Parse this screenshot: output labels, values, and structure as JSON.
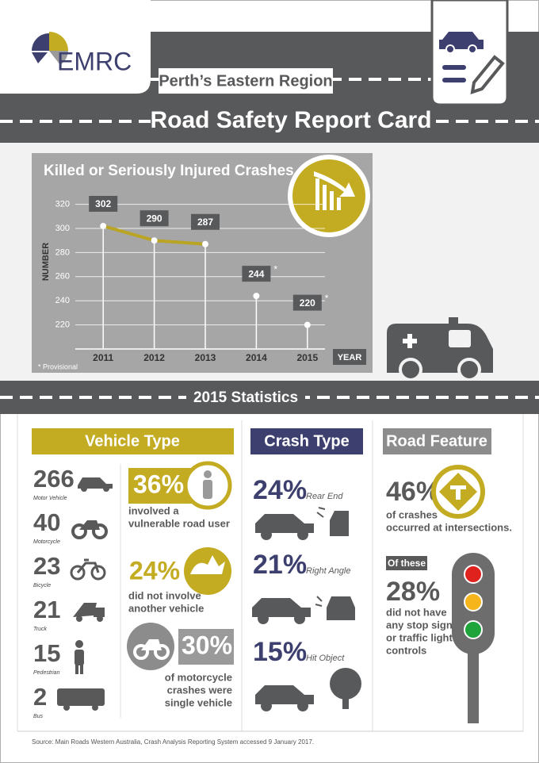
{
  "header": {
    "logo": "EMRC",
    "region": "Perth’s Eastern Region",
    "title": "Road Safety Report Card"
  },
  "chart_data": {
    "type": "line",
    "title": "Killed or Seriously Injured Crashes",
    "y_label": "NUMBER",
    "x_label": "YEAR",
    "categories": [
      "2011",
      "2012",
      "2013",
      "2014",
      "2015"
    ],
    "values": [
      302,
      290,
      287,
      244,
      220
    ],
    "provisional": [
      false,
      false,
      false,
      true,
      true
    ],
    "provisional_label": "*",
    "annotation": "* Provisional",
    "color": "#b9a424",
    "ylim": [
      200,
      325
    ],
    "yticks": [
      220,
      240,
      260,
      280,
      300,
      320
    ],
    "grid": true
  },
  "stats": {
    "title": "2015 Statistics",
    "vehicle_type": {
      "heading": "Vehicle Type",
      "items": [
        {
          "value": "266",
          "label": "Motor Vehicle"
        },
        {
          "value": "40",
          "label": "Motorcycle"
        },
        {
          "value": "23",
          "label": "Bicycle"
        },
        {
          "value": "21",
          "label": "Truck"
        },
        {
          "value": "15",
          "label": "Pedestrian"
        },
        {
          "value": "2",
          "label": "Bus"
        }
      ],
      "highlights": [
        {
          "value": "36%",
          "lines": [
            "involved a",
            "vulnerable road user"
          ]
        },
        {
          "value": "24%",
          "lines": [
            "did not involve",
            "another vehicle"
          ]
        },
        {
          "value": "30%",
          "lines": [
            "of motorcycle",
            "crashes were",
            "single vehicle"
          ]
        }
      ]
    },
    "crash_type": {
      "heading": "Crash Type",
      "items": [
        {
          "value": "24%",
          "label": "Rear End"
        },
        {
          "value": "21%",
          "label": "Right Angle"
        },
        {
          "value": "15%",
          "label": "Hit Object"
        }
      ]
    },
    "road_feature": {
      "heading": "Road Feature",
      "value": "46%",
      "lines": [
        "of crashes",
        "occurred at intersections."
      ],
      "subheading": "Of these",
      "sub_value": "28%",
      "sub_lines": [
        "did not have",
        "any stop signs",
        "or traffic light",
        "controls"
      ]
    }
  },
  "source": "Source: Main Roads Western Australia, Crash Analysis Reporting System accessed 9 January 2017."
}
